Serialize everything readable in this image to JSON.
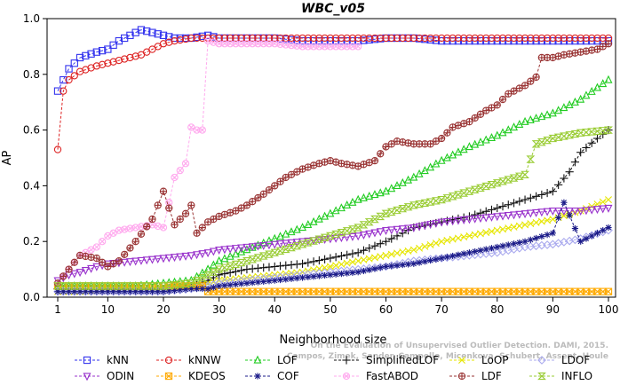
{
  "chart_data": {
    "type": "line",
    "title": "WBC_v05",
    "xlabel": "Neighborhood size",
    "ylabel": "AP",
    "xlim": [
      0,
      100
    ],
    "ylim": [
      0,
      1.0
    ],
    "xticks": [
      1,
      10,
      20,
      30,
      40,
      50,
      60,
      70,
      80,
      90,
      100
    ],
    "yticks": [
      0.0,
      0.2,
      0.4,
      0.6,
      0.8,
      1.0
    ],
    "ytick_labels": [
      "0.0",
      "0.2",
      "0.4",
      "0.6",
      "0.8",
      "1.0"
    ],
    "grid": false,
    "legend_position": "bottom",
    "watermark": "Campos, Zimek, Sander, Campello, Micenkova, Schubert, Assent, Houle On the Evaluation of Unsupervised Outlier Detection. DAMI, 2015.",
    "series": [
      {
        "name": "kNN",
        "color": "#3333ee",
        "marker": "square",
        "x": [
          1,
          2,
          3,
          5,
          8,
          10,
          12,
          14,
          15,
          16,
          18,
          20,
          22,
          25,
          28,
          30,
          32,
          35,
          38,
          40,
          45,
          50,
          55,
          60,
          65,
          70,
          75,
          80,
          85,
          90,
          95,
          100
        ],
        "y": [
          0.74,
          0.78,
          0.82,
          0.86,
          0.88,
          0.89,
          0.92,
          0.94,
          0.95,
          0.96,
          0.95,
          0.94,
          0.93,
          0.93,
          0.94,
          0.93,
          0.93,
          0.93,
          0.93,
          0.93,
          0.92,
          0.92,
          0.92,
          0.93,
          0.93,
          0.92,
          0.92,
          0.92,
          0.92,
          0.92,
          0.92,
          0.92
        ]
      },
      {
        "name": "kNNW",
        "color": "#dd2222",
        "marker": "circle",
        "x": [
          1,
          2,
          3,
          5,
          8,
          10,
          12,
          14,
          16,
          18,
          20,
          22,
          25,
          28,
          30,
          32,
          35,
          38,
          40,
          45,
          50,
          55,
          60,
          65,
          70,
          75,
          80,
          85,
          90,
          95,
          100
        ],
        "y": [
          0.53,
          0.74,
          0.78,
          0.81,
          0.83,
          0.84,
          0.85,
          0.86,
          0.87,
          0.89,
          0.91,
          0.92,
          0.93,
          0.93,
          0.93,
          0.93,
          0.93,
          0.93,
          0.93,
          0.93,
          0.93,
          0.93,
          0.93,
          0.93,
          0.93,
          0.93,
          0.93,
          0.93,
          0.93,
          0.93,
          0.93
        ]
      },
      {
        "name": "LOF",
        "color": "#22cc22",
        "marker": "triangle-up",
        "x": [
          1,
          5,
          10,
          15,
          20,
          25,
          28,
          30,
          35,
          40,
          45,
          50,
          55,
          60,
          65,
          70,
          75,
          80,
          85,
          90,
          95,
          100
        ],
        "y": [
          0.04,
          0.04,
          0.04,
          0.04,
          0.05,
          0.06,
          0.1,
          0.13,
          0.17,
          0.21,
          0.25,
          0.3,
          0.35,
          0.38,
          0.43,
          0.49,
          0.54,
          0.58,
          0.63,
          0.66,
          0.71,
          0.78
        ]
      },
      {
        "name": "SimplifiedLOF",
        "color": "#111111",
        "marker": "plus",
        "x": [
          1,
          5,
          10,
          15,
          20,
          25,
          28,
          30,
          35,
          40,
          45,
          50,
          55,
          60,
          65,
          70,
          75,
          80,
          85,
          90,
          93,
          95,
          98,
          100
        ],
        "y": [
          0.03,
          0.03,
          0.03,
          0.03,
          0.03,
          0.04,
          0.06,
          0.08,
          0.1,
          0.11,
          0.12,
          0.14,
          0.16,
          0.2,
          0.25,
          0.27,
          0.29,
          0.32,
          0.35,
          0.38,
          0.45,
          0.52,
          0.57,
          0.6
        ]
      },
      {
        "name": "LoOP",
        "color": "#e6e600",
        "marker": "x",
        "x": [
          1,
          5,
          10,
          15,
          20,
          25,
          28,
          30,
          35,
          40,
          45,
          50,
          55,
          60,
          65,
          70,
          75,
          80,
          85,
          90,
          95,
          100
        ],
        "y": [
          0.02,
          0.02,
          0.03,
          0.03,
          0.03,
          0.04,
          0.05,
          0.06,
          0.07,
          0.08,
          0.09,
          0.11,
          0.13,
          0.15,
          0.17,
          0.2,
          0.22,
          0.24,
          0.26,
          0.28,
          0.31,
          0.35
        ]
      },
      {
        "name": "LDOF",
        "color": "#aaaaee",
        "marker": "diamond",
        "x": [
          1,
          5,
          10,
          15,
          20,
          25,
          28,
          30,
          35,
          40,
          45,
          50,
          55,
          60,
          65,
          70,
          75,
          80,
          85,
          90,
          95,
          100
        ],
        "y": [
          0.02,
          0.02,
          0.02,
          0.02,
          0.02,
          0.03,
          0.04,
          0.05,
          0.06,
          0.07,
          0.08,
          0.09,
          0.1,
          0.11,
          0.13,
          0.14,
          0.15,
          0.16,
          0.18,
          0.19,
          0.21,
          0.24
        ]
      },
      {
        "name": "ODIN",
        "color": "#9933cc",
        "marker": "triangle-down",
        "x": [
          1,
          3,
          5,
          8,
          10,
          15,
          20,
          25,
          28,
          30,
          35,
          40,
          45,
          50,
          55,
          60,
          65,
          70,
          75,
          80,
          85,
          90,
          95,
          100
        ],
        "y": [
          0.06,
          0.08,
          0.09,
          0.11,
          0.12,
          0.13,
          0.14,
          0.15,
          0.16,
          0.17,
          0.18,
          0.19,
          0.2,
          0.21,
          0.22,
          0.24,
          0.25,
          0.27,
          0.28,
          0.29,
          0.3,
          0.31,
          0.31,
          0.32
        ]
      },
      {
        "name": "KDEOS",
        "color": "#ffaa00",
        "marker": "square-x",
        "x": [
          1,
          5,
          10,
          15,
          20,
          25,
          27,
          28,
          30,
          40,
          50,
          60,
          70,
          80,
          90,
          100
        ],
        "y": [
          0.04,
          0.04,
          0.04,
          0.04,
          0.04,
          0.04,
          0.04,
          0.02,
          0.02,
          0.02,
          0.02,
          0.02,
          0.02,
          0.02,
          0.02,
          0.02
        ]
      },
      {
        "name": "COF",
        "color": "#1a1a88",
        "marker": "star",
        "x": [
          1,
          5,
          10,
          15,
          20,
          25,
          28,
          30,
          35,
          40,
          45,
          50,
          55,
          60,
          65,
          70,
          75,
          80,
          85,
          90,
          92,
          95,
          100
        ],
        "y": [
          0.02,
          0.02,
          0.02,
          0.02,
          0.02,
          0.03,
          0.03,
          0.04,
          0.05,
          0.06,
          0.07,
          0.08,
          0.09,
          0.11,
          0.12,
          0.14,
          0.16,
          0.18,
          0.2,
          0.23,
          0.34,
          0.2,
          0.25
        ]
      },
      {
        "name": "FastABOD",
        "color": "#ffaaee",
        "marker": "circle-x",
        "x": [
          1,
          3,
          5,
          8,
          10,
          12,
          15,
          18,
          20,
          22,
          24,
          25,
          26,
          27,
          28,
          30,
          35,
          40,
          45,
          50,
          55
        ],
        "y": [
          0.05,
          0.1,
          0.15,
          0.18,
          0.22,
          0.24,
          0.25,
          0.26,
          0.25,
          0.43,
          0.48,
          0.61,
          0.6,
          0.6,
          0.92,
          0.91,
          0.91,
          0.91,
          0.9,
          0.9,
          0.9
        ]
      },
      {
        "name": "LDF",
        "color": "#993333",
        "marker": "circle-plus",
        "x": [
          1,
          3,
          5,
          8,
          10,
          12,
          15,
          18,
          20,
          22,
          24,
          25,
          26,
          27,
          28,
          30,
          33,
          35,
          38,
          40,
          42,
          45,
          48,
          50,
          52,
          55,
          58,
          60,
          62,
          65,
          68,
          70,
          72,
          75,
          78,
          80,
          82,
          85,
          87,
          88,
          90,
          92,
          95,
          98,
          100
        ],
        "y": [
          0.05,
          0.1,
          0.15,
          0.14,
          0.11,
          0.13,
          0.2,
          0.28,
          0.38,
          0.26,
          0.3,
          0.33,
          0.23,
          0.25,
          0.27,
          0.29,
          0.31,
          0.33,
          0.37,
          0.4,
          0.43,
          0.46,
          0.48,
          0.49,
          0.48,
          0.47,
          0.49,
          0.54,
          0.56,
          0.55,
          0.55,
          0.57,
          0.61,
          0.63,
          0.67,
          0.69,
          0.73,
          0.76,
          0.79,
          0.86,
          0.86,
          0.87,
          0.88,
          0.89,
          0.91
        ]
      },
      {
        "name": "INFLO",
        "color": "#99cc33",
        "marker": "hourglass",
        "x": [
          1,
          5,
          10,
          15,
          20,
          25,
          28,
          30,
          35,
          40,
          45,
          50,
          55,
          60,
          65,
          70,
          75,
          80,
          85,
          87,
          90,
          95,
          100
        ],
        "y": [
          0.04,
          0.04,
          0.04,
          0.04,
          0.04,
          0.05,
          0.08,
          0.1,
          0.13,
          0.16,
          0.19,
          0.22,
          0.25,
          0.3,
          0.33,
          0.35,
          0.38,
          0.41,
          0.44,
          0.55,
          0.57,
          0.59,
          0.6
        ]
      }
    ],
    "legend_rows": [
      [
        "kNN",
        "kNNW",
        "LOF",
        "SimplifiedLOF",
        "LoOP",
        "LDOF"
      ],
      [
        "ODIN",
        "KDEOS",
        "COF",
        "FastABOD",
        "LDF",
        "INFLO"
      ]
    ]
  }
}
